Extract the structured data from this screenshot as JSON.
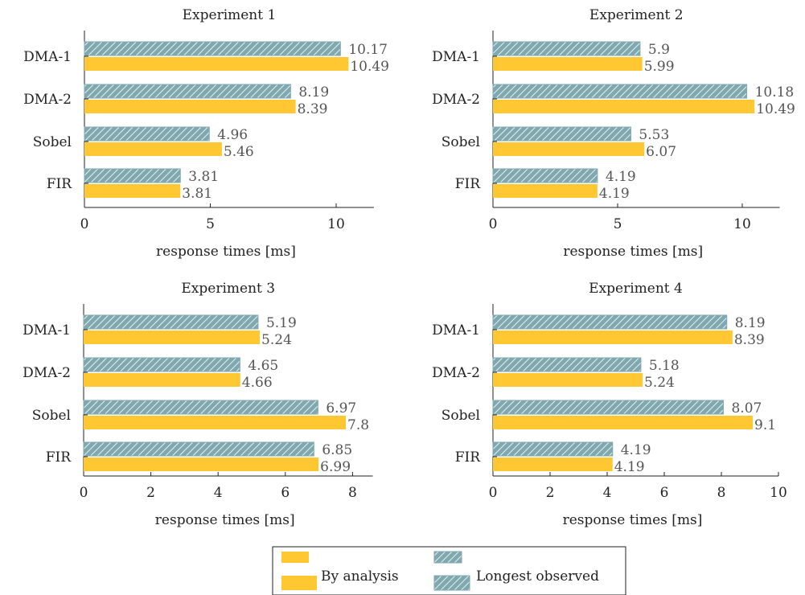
{
  "colors": {
    "analysis": "#FFC832",
    "observed": "#7FA8AF",
    "hatch": "#E8F1F2"
  },
  "legend": {
    "analysis": "By analysis",
    "observed": "Longest observed"
  },
  "chart_data": [
    {
      "type": "bar",
      "orientation": "horizontal",
      "title": "Experiment 1",
      "xlabel": "response times [ms]",
      "categories": [
        "DMA-1",
        "DMA-2",
        "Sobel",
        "FIR"
      ],
      "xlim": [
        0,
        11.5
      ],
      "xticks": [
        0,
        5,
        10
      ],
      "series": [
        {
          "name": "Longest observed",
          "values": [
            10.17,
            8.19,
            4.96,
            3.81
          ]
        },
        {
          "name": "By analysis",
          "values": [
            10.49,
            8.39,
            5.46,
            3.81
          ]
        }
      ]
    },
    {
      "type": "bar",
      "orientation": "horizontal",
      "title": "Experiment 2",
      "xlabel": "response times [ms]",
      "categories": [
        "DMA-1",
        "DMA-2",
        "Sobel",
        "FIR"
      ],
      "xlim": [
        0,
        11.5
      ],
      "xticks": [
        0,
        5,
        10
      ],
      "series": [
        {
          "name": "Longest observed",
          "values": [
            5.9,
            10.18,
            5.53,
            4.19
          ]
        },
        {
          "name": "By analysis",
          "values": [
            5.99,
            10.49,
            6.07,
            4.19
          ]
        }
      ]
    },
    {
      "type": "bar",
      "orientation": "horizontal",
      "title": "Experiment 3",
      "xlabel": "response times [ms]",
      "categories": [
        "DMA-1",
        "DMA-2",
        "Sobel",
        "FIR"
      ],
      "xlim": [
        0,
        8.6
      ],
      "xticks": [
        0,
        2,
        4,
        6,
        8
      ],
      "series": [
        {
          "name": "Longest observed",
          "values": [
            5.19,
            4.65,
            6.97,
            6.85
          ]
        },
        {
          "name": "By analysis",
          "values": [
            5.24,
            4.66,
            7.8,
            6.99
          ]
        }
      ]
    },
    {
      "type": "bar",
      "orientation": "horizontal",
      "title": "Experiment 4",
      "xlabel": "response times [ms]",
      "categories": [
        "DMA-1",
        "DMA-2",
        "Sobel",
        "FIR"
      ],
      "xlim": [
        0,
        10
      ],
      "xticks": [
        0,
        2,
        4,
        6,
        8,
        10
      ],
      "series": [
        {
          "name": "Longest observed",
          "values": [
            8.19,
            5.18,
            8.07,
            4.19
          ]
        },
        {
          "name": "By analysis",
          "values": [
            8.39,
            5.24,
            9.1,
            4.19
          ]
        }
      ]
    }
  ]
}
